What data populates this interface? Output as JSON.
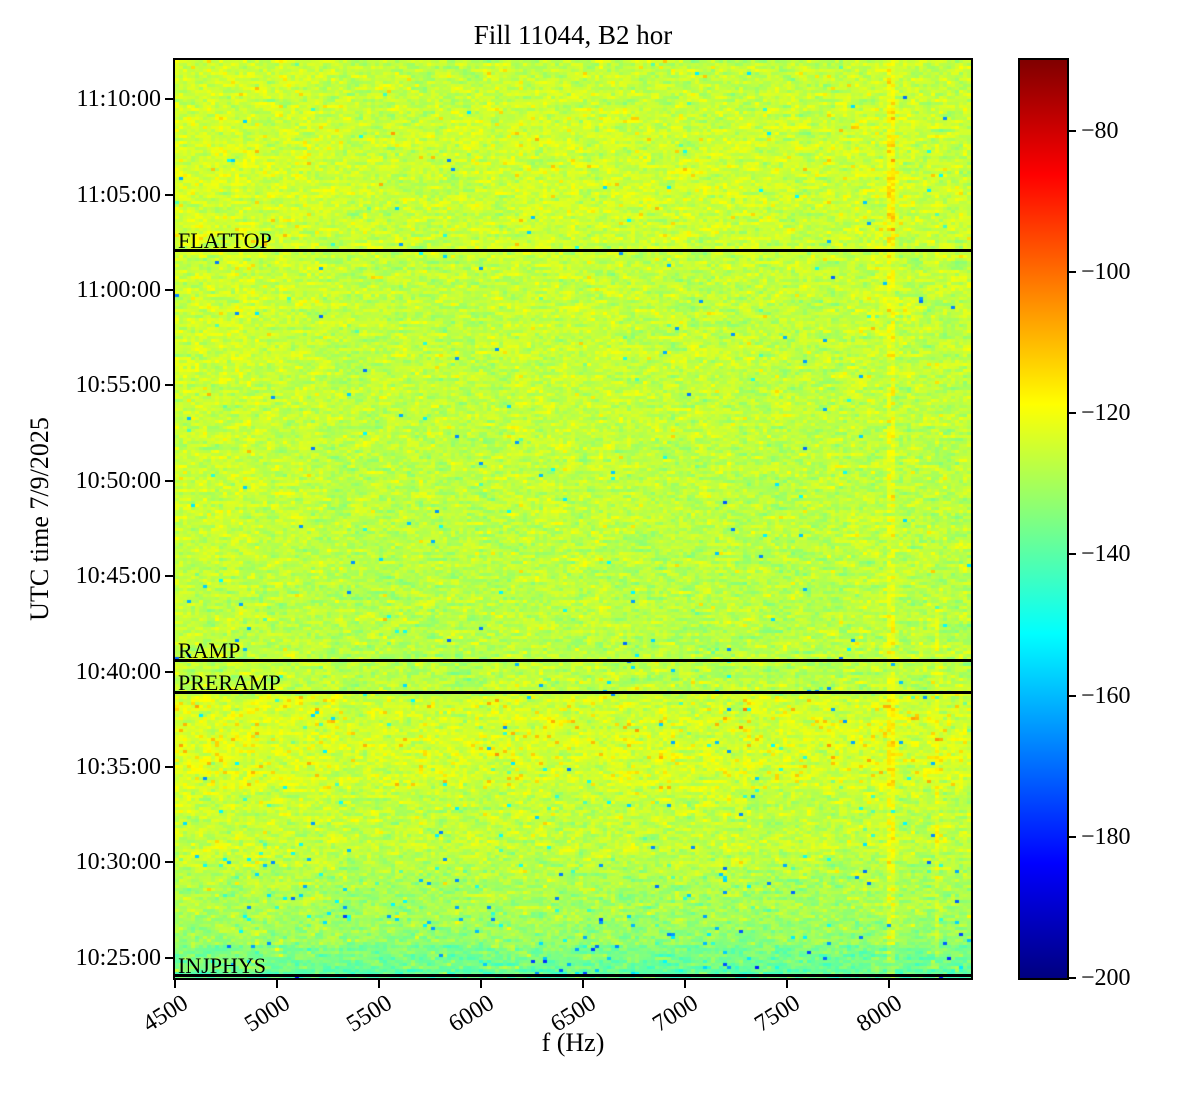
{
  "chart_data": {
    "type": "heatmap",
    "subtype": "spectrogram",
    "title": "Fill 11044, B2 hor",
    "xlabel": "f (Hz)",
    "ylabel": "UTC time 7/9/2025",
    "date": "7/9/2025",
    "xlim": [
      4500,
      8400
    ],
    "x_ticks": [
      4500,
      5000,
      5500,
      6000,
      6500,
      7000,
      7500,
      8000
    ],
    "time_axis": {
      "start_bottom": "10:23:56",
      "end_top": "11:12:04",
      "ticks": [
        "10:25:00",
        "10:30:00",
        "10:35:00",
        "10:40:00",
        "10:45:00",
        "10:50:00",
        "10:55:00",
        "11:00:00",
        "11:05:00",
        "11:10:00"
      ]
    },
    "colorbar": {
      "colormap": "jet",
      "vmin": -200,
      "vmax": -70,
      "ticks": [
        -80,
        -100,
        -120,
        -140,
        -160,
        -180,
        -200
      ],
      "tick_labels": [
        "−80",
        "−100",
        "−120",
        "−140",
        "−160",
        "−180",
        "−200"
      ]
    },
    "beam_mode_events": [
      {
        "label": "FLATTOP",
        "time": "11:02:06"
      },
      {
        "label": "RAMP",
        "time": "10:40:36"
      },
      {
        "label": "PRERAMP",
        "time": "10:38:55"
      },
      {
        "label": "INJPHYS",
        "time": "10:24:02"
      }
    ],
    "noise_floor": {
      "mean_db": -125.5,
      "std_db": 4.5
    },
    "features": [
      {
        "kind": "vertical-tone",
        "f_hz": 8010,
        "boost_db": 10,
        "note": "orange streak, full height, strongest above FLATTOP and below PRERAMP"
      },
      {
        "kind": "vertical-tone",
        "f_hz": 8230,
        "boost_db": 6,
        "note": "faint orange streak in lower portion"
      },
      {
        "kind": "warm-band",
        "time_range": [
          "10:34:30",
          "10:38:55"
        ],
        "offset_db": 2.3,
        "note": "yellower band just below PRERAMP with orange specks"
      },
      {
        "kind": "quiet-band",
        "time_range": [
          "10:24:00",
          "10:28:30"
        ],
        "offset_db": -8,
        "note": "greener/cyan band at bottom (injection)"
      }
    ]
  }
}
